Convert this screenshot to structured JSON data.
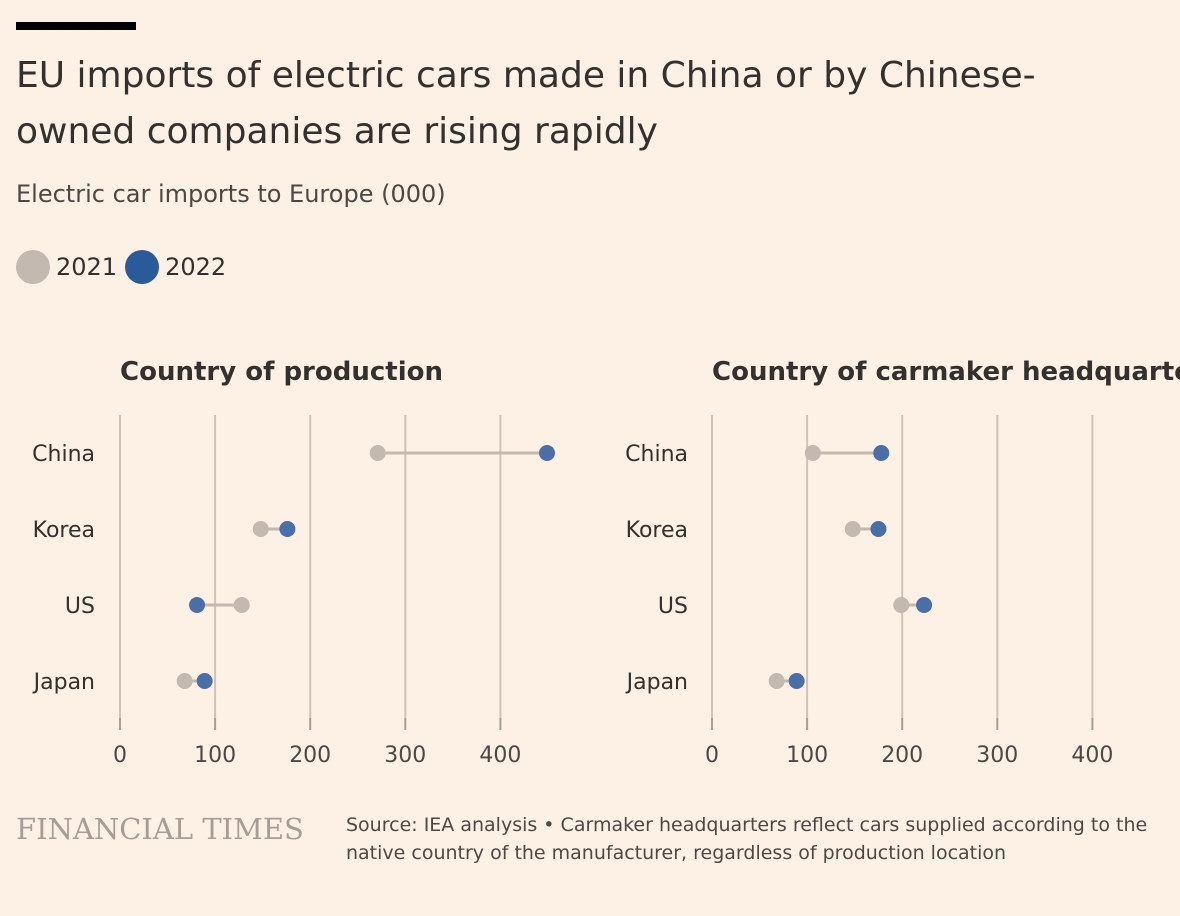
{
  "title": "EU imports of electric cars made in China or by Chinese-owned companies are rising rapidly",
  "subtitle": "Electric car imports to Europe (000)",
  "legend": [
    {
      "label": "2021",
      "color": "#c4b9b0"
    },
    {
      "label": "2022",
      "color": "#2a5a9a"
    }
  ],
  "colors": {
    "background": "#fdf1e6",
    "dot_2021": "#c4b9b0",
    "dot_2022": "#4a6ea8",
    "connector": "#c4b9b0",
    "gridline": "#cfc2b6"
  },
  "chart_data": [
    {
      "type": "scatter",
      "title": "Country of production",
      "categories": [
        "China",
        "Korea",
        "US",
        "Japan"
      ],
      "series": [
        {
          "name": "2021",
          "values": [
            271,
            148,
            128,
            68
          ]
        },
        {
          "name": "2022",
          "values": [
            449,
            176,
            81,
            89
          ]
        }
      ],
      "xlim": [
        0,
        460
      ],
      "xticks": [
        "0",
        "100",
        "200",
        "300",
        "400"
      ],
      "grid": true
    },
    {
      "type": "scatter",
      "title": "Country of carmaker headquarters",
      "categories": [
        "China",
        "Korea",
        "US",
        "Japan"
      ],
      "series": [
        {
          "name": "2021",
          "values": [
            106,
            148,
            199,
            68
          ]
        },
        {
          "name": "2022",
          "values": [
            178,
            175,
            223,
            89
          ]
        }
      ],
      "xlim": [
        0,
        460
      ],
      "xticks": [
        "0",
        "100",
        "200",
        "300",
        "400"
      ],
      "grid": true
    }
  ],
  "footer": {
    "logo_text": "FINANCIAL TIMES",
    "source": "Source: IEA analysis • Carmaker headquarters reflect cars supplied according to the native country of the manufacturer, regardless of production location"
  }
}
